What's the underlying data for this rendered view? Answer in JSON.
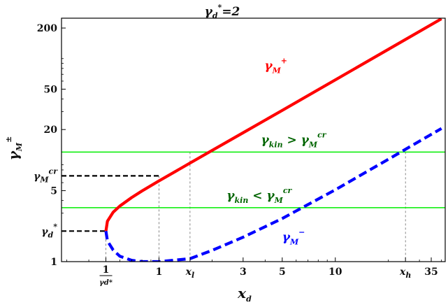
{
  "chart_data": {
    "type": "line",
    "title": "γd*=2",
    "title_base": "γ",
    "title_sub": "d",
    "title_sup": "*",
    "title_eq": "=2",
    "xlabel": "x",
    "xlabel_sub": "d",
    "ylabel": "γ",
    "ylabel_sub": "M",
    "ylabel_sup": "±",
    "x_scale": "log",
    "y_scale": "log",
    "xlim": [
      0.28,
      42
    ],
    "ylim": [
      1,
      250
    ],
    "xticks": [
      {
        "value": 0.5,
        "label": "1",
        "frac_den": "γd*",
        "type": "frac"
      },
      {
        "value": 1,
        "label": "1"
      },
      {
        "value": 1.5,
        "label": "x",
        "sub": "l",
        "type": "italic"
      },
      {
        "value": 3,
        "label": "3"
      },
      {
        "value": 5,
        "label": "5"
      },
      {
        "value": 10,
        "label": "10"
      },
      {
        "value": 25,
        "label": "x",
        "sub": "h",
        "type": "italic"
      },
      {
        "value": 35,
        "label": "35"
      }
    ],
    "yticks": [
      {
        "value": 1,
        "label": "1"
      },
      {
        "value": 2,
        "label": "γ",
        "sub": "d",
        "sup": "*",
        "type": "italic"
      },
      {
        "value": 5,
        "label": "5"
      },
      {
        "value": 7,
        "label": "γ",
        "sub": "M",
        "sup": "cr",
        "type": "italic"
      },
      {
        "value": 20,
        "label": "20"
      },
      {
        "value": 50,
        "label": "50"
      },
      {
        "value": 200,
        "label": "200"
      }
    ],
    "gamma_d_star": 2,
    "series": [
      {
        "name": "γM+",
        "color": "#ff0000",
        "dash": "solid",
        "x": [
          0.5,
          0.51,
          0.55,
          0.6,
          0.7,
          0.8,
          1,
          1.5,
          2,
          3,
          5,
          10,
          20,
          40
        ],
        "y": [
          2.0,
          2.5,
          3.07,
          3.53,
          4.28,
          4.96,
          6.24,
          9.35,
          12.45,
          18.6,
          30.9,
          61.7,
          123.4,
          246.7
        ]
      },
      {
        "name": "γM−",
        "color": "#0000ff",
        "dash": "dashed",
        "x": [
          0.5,
          0.51,
          0.55,
          0.6,
          0.7,
          0.8,
          1,
          1.5,
          2,
          3,
          5,
          10,
          20,
          40
        ],
        "y": [
          2.0,
          1.6,
          1.3,
          1.13,
          1.03,
          1.0,
          1.0,
          1.07,
          1.29,
          1.74,
          2.66,
          5.1,
          10.2,
          20.5
        ]
      }
    ],
    "hlines": [
      {
        "y": 12,
        "color": "#00ee00"
      },
      {
        "y": 3.4,
        "color": "#00ee00"
      }
    ],
    "vlines_thin": [
      0.5,
      1,
      1.5,
      25
    ],
    "guides_black_dashed": [
      {
        "y": 2,
        "x_end": 0.5
      },
      {
        "y": 7,
        "x_end": 1
      }
    ],
    "annotations": [
      {
        "text": "γM+",
        "base": "γ",
        "sub": "M",
        "sup": "+",
        "color": "#ff0000",
        "x": 4.6,
        "y": 78
      },
      {
        "text": "γM−",
        "base": "γ",
        "sub": "M",
        "sup": "−",
        "color": "#0000ff",
        "x": 5.8,
        "y": 1.6
      },
      {
        "text": "γkin > γMcr",
        "left_base": "γ",
        "left_sub": "kin",
        "op": " > ",
        "right_base": "γ",
        "right_sub": "M",
        "right_sup": "cr",
        "color": "#006400",
        "x": 5.8,
        "y": 14.5
      },
      {
        "text": "γkin < γMcr",
        "left_base": "γ",
        "left_sub": "kin",
        "op": " < ",
        "right_base": "γ",
        "right_sub": "M",
        "right_sup": "cr",
        "color": "#006400",
        "x": 3.7,
        "y": 4.1
      }
    ]
  }
}
